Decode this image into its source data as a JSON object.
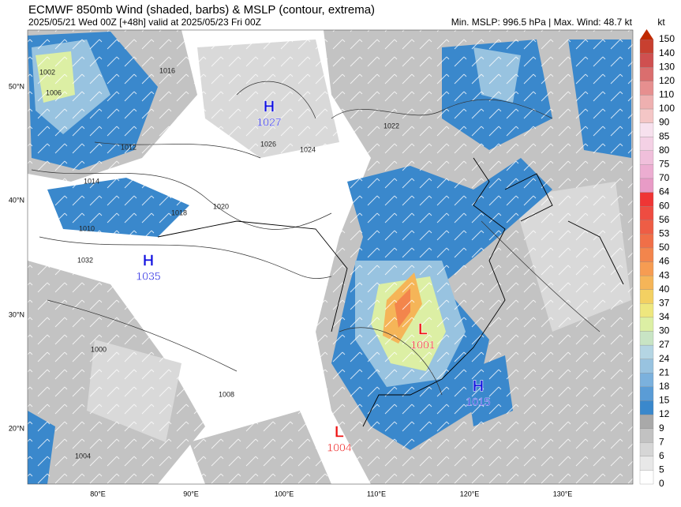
{
  "header": {
    "title": "ECMWF 850mb Wind (shaded, barbs) & MSLP (contour, extrema)",
    "subtitle": "2025/05/21 Wed 00Z [+48h] valid at 2025/05/23 Fri 00Z",
    "stats": "Min. MSLP: 996.5 hPa | Max. Wind: 48.7 kt"
  },
  "colorbar": {
    "unit": "kt",
    "levels": [
      0,
      5,
      6,
      7,
      9,
      12,
      15,
      18,
      21,
      24,
      27,
      30,
      34,
      37,
      40,
      43,
      46,
      50,
      53,
      56,
      60,
      64,
      70,
      75,
      80,
      85,
      90,
      100,
      110,
      120,
      130,
      140,
      150
    ],
    "colors": [
      "#ffffff",
      "#e8e8e8",
      "#d6d6d6",
      "#c2c2c2",
      "#a9a9a9",
      "#3a88cc",
      "#5a9cd6",
      "#7bb1dd",
      "#98c3e0",
      "#b4d5e3",
      "#c8e4c4",
      "#dcefa4",
      "#eee77e",
      "#f3d062",
      "#f5b558",
      "#f69c52",
      "#f3854c",
      "#f06f48",
      "#ee5d45",
      "#ee4c41",
      "#ef3535",
      "#e89bc6",
      "#ecadd1",
      "#f0bfdb",
      "#f4d1e5",
      "#f7e1ee",
      "#f4c6c6",
      "#eeb0b0",
      "#e68f8f",
      "#da6e6e",
      "#cf5050",
      "#c84030"
    ],
    "extend_color": "#c02a00"
  },
  "axes": {
    "lat_labels": [
      "50°N",
      "40°N",
      "30°N",
      "20°N"
    ],
    "lon_labels": [
      "80°E",
      "90°E",
      "100°E",
      "110°E",
      "120°E",
      "130°E"
    ]
  },
  "extrema": [
    {
      "type": "H",
      "value": "1027"
    },
    {
      "type": "H",
      "value": "1035"
    },
    {
      "type": "L",
      "value": "1001"
    },
    {
      "type": "H",
      "value": "1015"
    },
    {
      "type": "L",
      "value": "1004"
    }
  ],
  "contour_labels": [
    "1016",
    "1022",
    "1026",
    "1024",
    "1014",
    "1012",
    "1010",
    "1000",
    "1008",
    "1004",
    "1002",
    "1006",
    "1018",
    "1020",
    "1032"
  ]
}
